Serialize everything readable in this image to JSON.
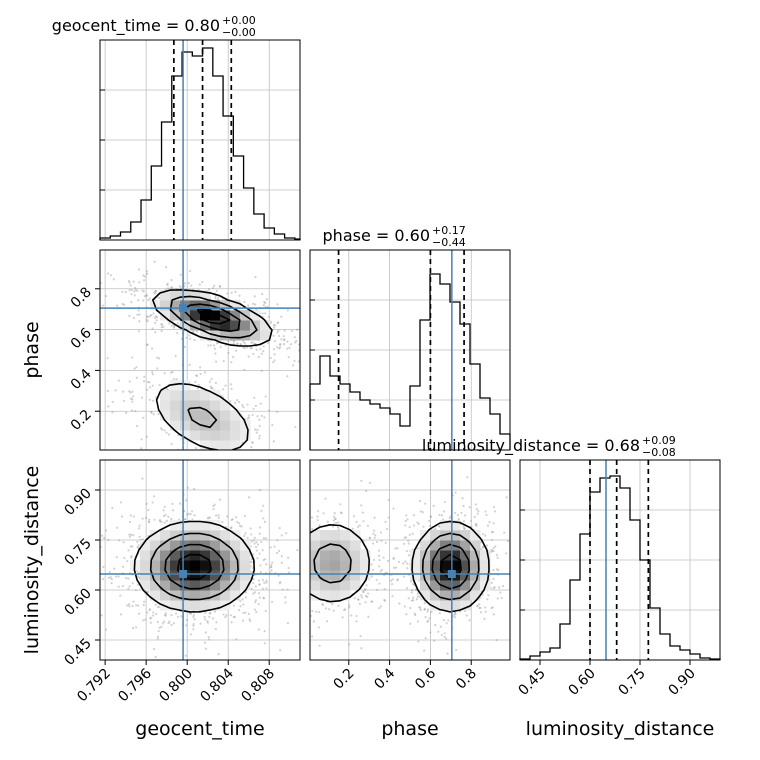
{
  "chart_data": {
    "type": "corner",
    "parameters": [
      {
        "name": "geocent_time",
        "range": [
          0.7915,
          0.811
        ],
        "truth": 0.7996,
        "ticks": [
          "0.792",
          "0.796",
          "0.800",
          "0.804",
          "0.808"
        ],
        "tick_values": [
          0.792,
          0.796,
          0.8,
          0.804,
          0.808
        ],
        "quantiles": [
          0.7987,
          0.8015,
          0.8043
        ],
        "title": {
          "main": "geocent_time = 0.80",
          "plus": "+0.00",
          "minus": "−0.00"
        }
      },
      {
        "name": "phase",
        "range": [
          0.01,
          0.99
        ],
        "truth": 0.705,
        "ticks": [
          "0.2",
          "0.4",
          "0.6",
          "0.8"
        ],
        "tick_values": [
          0.2,
          0.4,
          0.6,
          0.8
        ],
        "quantiles": [
          0.15,
          0.6,
          0.765
        ],
        "title": {
          "main": "phase = 0.60",
          "plus": "+0.17",
          "minus": "−0.44"
        }
      },
      {
        "name": "luminosity_distance",
        "range": [
          0.39,
          0.99
        ],
        "truth": 0.648,
        "ticks": [
          "0.45",
          "0.60",
          "0.75",
          "0.90"
        ],
        "tick_values": [
          0.45,
          0.6,
          0.75,
          0.9
        ],
        "quantiles": [
          0.6,
          0.68,
          0.775
        ],
        "title": {
          "main": "luminosity_distance = 0.68",
          "plus": "+0.09",
          "minus": "−0.08"
        }
      }
    ],
    "histograms": [
      {
        "param": "geocent_time",
        "bin_edges": [
          0.7915,
          0.7925,
          0.7935,
          0.7945,
          0.7955,
          0.7965,
          0.7975,
          0.7985,
          0.7995,
          0.8005,
          0.8015,
          0.8025,
          0.8035,
          0.8045,
          0.8055,
          0.8065,
          0.8075,
          0.8085,
          0.8095,
          0.8105,
          0.8115
        ],
        "counts": [
          0.01,
          0.02,
          0.04,
          0.09,
          0.2,
          0.37,
          0.59,
          0.82,
          0.94,
          0.92,
          0.96,
          0.82,
          0.62,
          0.42,
          0.26,
          0.13,
          0.06,
          0.03,
          0.01,
          0.005
        ]
      },
      {
        "param": "phase",
        "bin_edges": [
          0.01,
          0.059,
          0.108,
          0.157,
          0.206,
          0.255,
          0.304,
          0.353,
          0.402,
          0.451,
          0.5,
          0.549,
          0.598,
          0.647,
          0.696,
          0.745,
          0.794,
          0.843,
          0.892,
          0.941,
          0.99
        ],
        "counts": [
          0.33,
          0.47,
          0.37,
          0.33,
          0.29,
          0.25,
          0.23,
          0.21,
          0.18,
          0.12,
          0.32,
          0.65,
          0.88,
          0.83,
          0.74,
          0.63,
          0.43,
          0.26,
          0.18,
          0.08
        ]
      },
      {
        "param": "luminosity_distance",
        "bin_edges": [
          0.39,
          0.42,
          0.45,
          0.48,
          0.51,
          0.54,
          0.57,
          0.6,
          0.63,
          0.66,
          0.69,
          0.72,
          0.75,
          0.78,
          0.81,
          0.84,
          0.87,
          0.9,
          0.93,
          0.96,
          0.99
        ],
        "counts": [
          0.005,
          0.02,
          0.04,
          0.06,
          0.18,
          0.4,
          0.63,
          0.84,
          0.91,
          0.92,
          0.86,
          0.7,
          0.5,
          0.26,
          0.13,
          0.07,
          0.05,
          0.03,
          0.01,
          0.005
        ]
      }
    ],
    "pairs": [
      {
        "x": "geocent_time",
        "y": "phase",
        "density_modes": [
          {
            "x": 0.8025,
            "y": 0.66,
            "sx": 0.0028,
            "sy": 0.065,
            "rho": -0.6,
            "w": 1.0
          },
          {
            "x": 0.8015,
            "y": 0.17,
            "sx": 0.003,
            "sy": 0.11,
            "rho": -0.5,
            "w": 0.35
          }
        ]
      },
      {
        "x": "geocent_time",
        "y": "luminosity_distance",
        "density_modes": [
          {
            "x": 0.8007,
            "y": 0.67,
            "sx": 0.0028,
            "sy": 0.065,
            "rho": 0.0,
            "w": 1.0
          }
        ]
      },
      {
        "x": "phase",
        "y": "luminosity_distance",
        "density_modes": [
          {
            "x": 0.7,
            "y": 0.67,
            "sx": 0.09,
            "sy": 0.065,
            "rho": 0.0,
            "w": 1.0
          },
          {
            "x": 0.12,
            "y": 0.68,
            "sx": 0.11,
            "sy": 0.07,
            "rho": 0.0,
            "w": 0.45
          }
        ]
      }
    ],
    "grid": true,
    "colors": {
      "truth": "#4682b4",
      "hist": "#000000",
      "contour": "#000000",
      "grid": "#bfbfbf"
    }
  }
}
